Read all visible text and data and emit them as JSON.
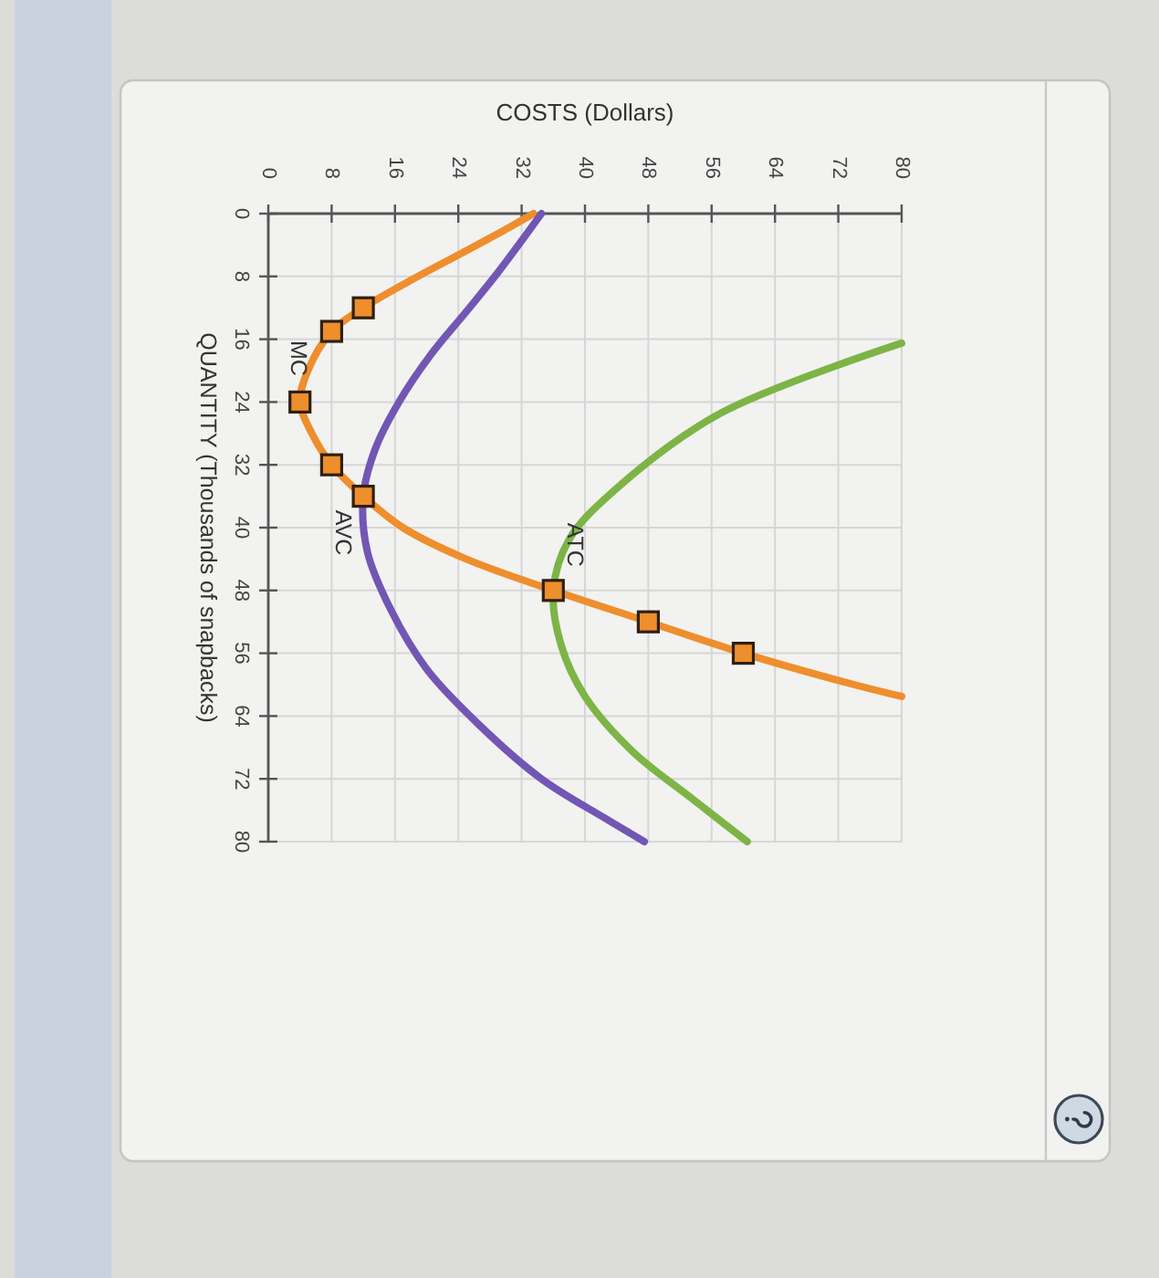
{
  "chart_data": {
    "type": "line",
    "xlabel": "COSTS (Dollars)",
    "ylabel": "QUANTITY (Thousands of snapbacks)",
    "xlim": [
      0,
      80
    ],
    "ylim": [
      80,
      0
    ],
    "xticks": [
      0,
      8,
      16,
      24,
      32,
      40,
      48,
      56,
      64,
      72,
      80
    ],
    "yticks": [
      0,
      8,
      16,
      24,
      32,
      40,
      48,
      56,
      64,
      72,
      80
    ],
    "grid": true,
    "marker": "none",
    "line_style": "solid",
    "series": [
      {
        "name": "MC",
        "color": "#ee8e2d",
        "x": [
          33.5,
          30,
          24.5,
          18,
          12,
          8,
          5,
          4,
          5.5,
          8,
          12,
          17,
          25,
          36,
          48,
          60,
          74,
          80
        ],
        "values": [
          0,
          2,
          5,
          8.5,
          12,
          15,
          20,
          24,
          28,
          32,
          36,
          40,
          44,
          48,
          52,
          56,
          60,
          61.5
        ]
      },
      {
        "type": "scatter",
        "marker": "square",
        "color": "#ee8e2d",
        "x": [
          12,
          8,
          4,
          8,
          12,
          36,
          48,
          60
        ],
        "values": [
          12,
          15,
          24,
          32,
          36,
          48,
          52,
          56
        ]
      },
      {
        "name": "AVC",
        "color": "#7256b4",
        "x": [
          34.5,
          29,
          25,
          20.5,
          16.5,
          13.5,
          12,
          12.5,
          15.5,
          20,
          26.5,
          34.5,
          42.5,
          47.5
        ],
        "values": [
          0,
          7.5,
          12.5,
          18,
          24,
          30,
          36,
          43,
          50.5,
          58,
          65,
          72,
          77,
          80
        ]
      },
      {
        "name": "ATC",
        "color": "#7db446",
        "x": [
          80,
          57,
          44,
          38,
          36,
          37,
          40,
          46,
          53.5,
          60.5
        ],
        "values": [
          16.5,
          25.5,
          35,
          41.5,
          48,
          55,
          61.5,
          68.5,
          74.5,
          80
        ]
      }
    ]
  }
}
